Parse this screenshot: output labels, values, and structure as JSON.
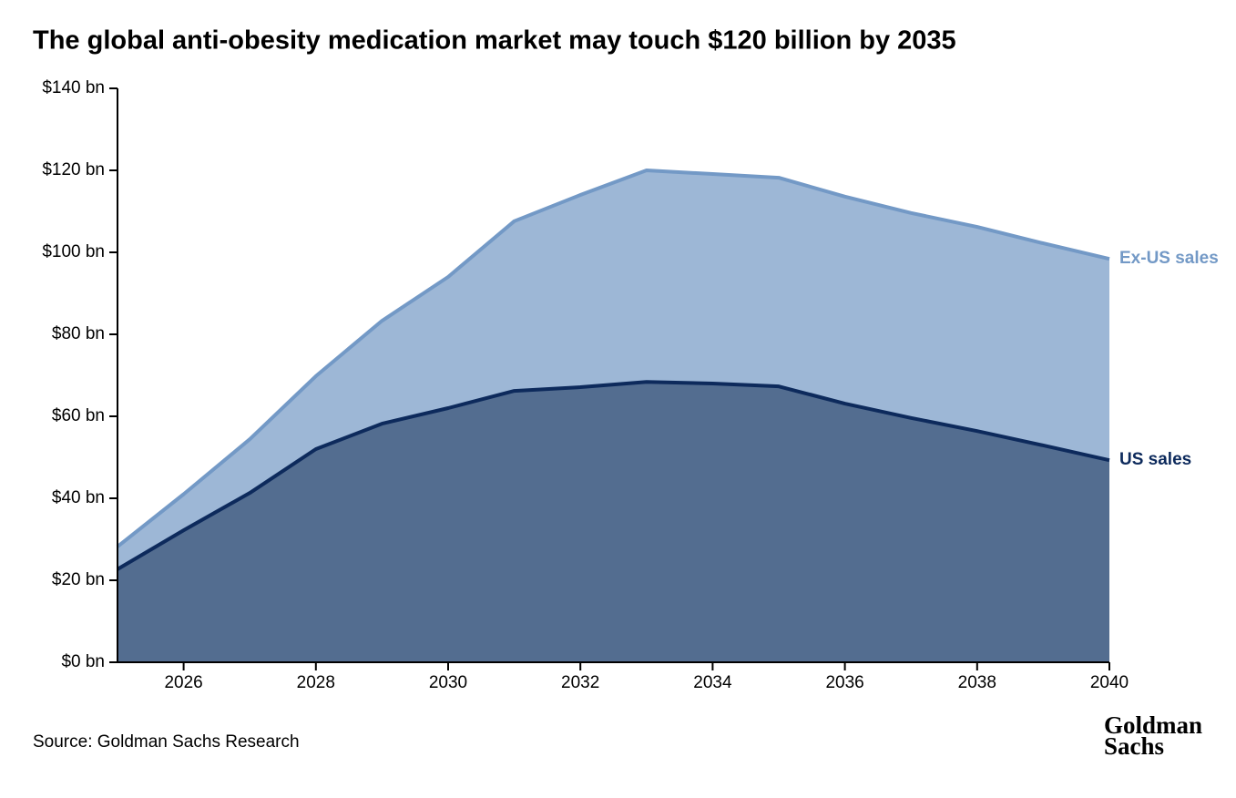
{
  "chart_data": {
    "type": "stacked-area",
    "title": "The global anti-obesity medication market may touch $120 billion by 2035",
    "source": "Source: Goldman Sachs Research",
    "logo": [
      "Goldman",
      "Sachs"
    ],
    "x": [
      2025,
      2026,
      2027,
      2028,
      2029,
      2030,
      2031,
      2032,
      2033,
      2034,
      2035,
      2036,
      2037,
      2038,
      2039,
      2040
    ],
    "series": [
      {
        "name": "US sales",
        "color": "#0d2a5c",
        "fill": "#536d90",
        "values": [
          22.7,
          32.2,
          41.3,
          52,
          58.2,
          62,
          66.2,
          67.1,
          68.4,
          68,
          67.3,
          63.1,
          59.6,
          56.4,
          52.9,
          49.3
        ]
      },
      {
        "name": "Ex-US sales",
        "color": "#7399c6",
        "fill": "#9db7d6",
        "values": [
          5.5,
          8.8,
          13.1,
          17.8,
          25.1,
          32,
          41.4,
          46.9,
          51.6,
          51.1,
          50.9,
          50.5,
          50,
          49.8,
          49.3,
          49.1
        ]
      }
    ],
    "xlim": [
      2025,
      2040
    ],
    "xticks": [
      2026,
      2028,
      2030,
      2032,
      2034,
      2036,
      2038,
      2040
    ],
    "ylim": [
      0,
      140
    ],
    "yticks": [
      {
        "value": 0,
        "label": "$0 bn"
      },
      {
        "value": 20,
        "label": "$20 bn"
      },
      {
        "value": 40,
        "label": "$40 bn"
      },
      {
        "value": 60,
        "label": "$60 bn"
      },
      {
        "value": 80,
        "label": "$80 bn"
      },
      {
        "value": 100,
        "label": "$100 bn"
      },
      {
        "value": 120,
        "label": "$120 bn"
      },
      {
        "value": 140,
        "label": "$140 bn"
      }
    ]
  }
}
